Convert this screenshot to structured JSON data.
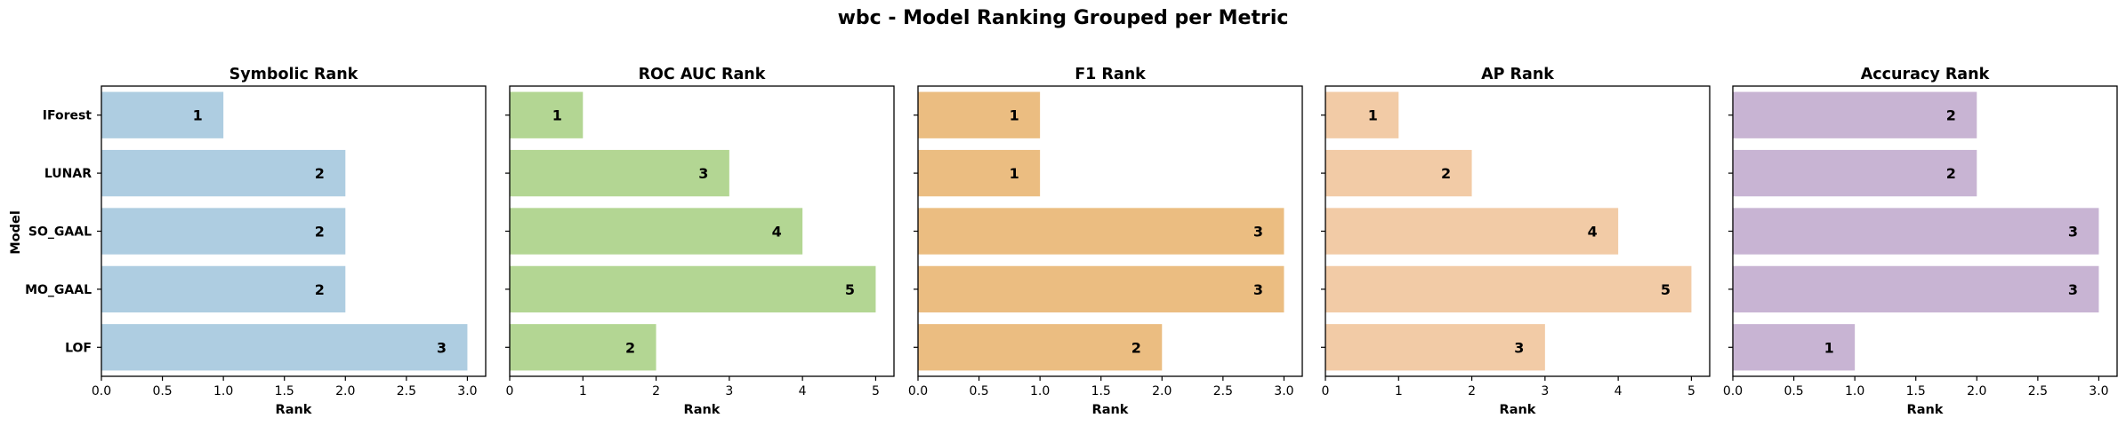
{
  "figure": {
    "title": "wbc - Model Ranking Grouped per Metric",
    "shared_ylabel": "Model"
  },
  "chart_data": [
    {
      "type": "bar",
      "orientation": "horizontal",
      "title": "Symbolic Rank",
      "xlabel": "Rank",
      "ylabel": "Model",
      "categories": [
        "IForest",
        "LUNAR",
        "SO_GAAL",
        "MO_GAAL",
        "LOF"
      ],
      "values": [
        1,
        2,
        2,
        2,
        3
      ],
      "xlim": [
        0,
        3.15
      ],
      "xticks": [
        0.0,
        0.5,
        1.0,
        1.5,
        2.0,
        2.5,
        3.0
      ],
      "xtick_labels": [
        "0.0",
        "0.5",
        "1.0",
        "1.5",
        "2.0",
        "2.5",
        "3.0"
      ],
      "color": "#aecde1",
      "show_category_labels": true,
      "data_labels": true,
      "grid": false
    },
    {
      "type": "bar",
      "orientation": "horizontal",
      "title": "ROC AUC Rank",
      "xlabel": "Rank",
      "ylabel": "",
      "categories": [
        "IForest",
        "LUNAR",
        "SO_GAAL",
        "MO_GAAL",
        "LOF"
      ],
      "values": [
        1,
        3,
        4,
        5,
        2
      ],
      "xlim": [
        0,
        5.25
      ],
      "xticks": [
        0,
        1,
        2,
        3,
        4,
        5
      ],
      "xtick_labels": [
        "0",
        "1",
        "2",
        "3",
        "4",
        "5"
      ],
      "color": "#b3d693",
      "show_category_labels": false,
      "data_labels": true,
      "grid": false
    },
    {
      "type": "bar",
      "orientation": "horizontal",
      "title": "F1 Rank",
      "xlabel": "Rank",
      "ylabel": "",
      "categories": [
        "IForest",
        "LUNAR",
        "SO_GAAL",
        "MO_GAAL",
        "LOF"
      ],
      "values": [
        1,
        1,
        3,
        3,
        2
      ],
      "xlim": [
        0,
        3.15
      ],
      "xticks": [
        0.0,
        0.5,
        1.0,
        1.5,
        2.0,
        2.5,
        3.0
      ],
      "xtick_labels": [
        "0.0",
        "0.5",
        "1.0",
        "1.5",
        "2.0",
        "2.5",
        "3.0"
      ],
      "color": "#ebbd81",
      "show_category_labels": false,
      "data_labels": true,
      "grid": false
    },
    {
      "type": "bar",
      "orientation": "horizontal",
      "title": "AP Rank",
      "xlabel": "Rank",
      "ylabel": "",
      "categories": [
        "IForest",
        "LUNAR",
        "SO_GAAL",
        "MO_GAAL",
        "LOF"
      ],
      "values": [
        1,
        2,
        4,
        5,
        3
      ],
      "xlim": [
        0,
        5.25
      ],
      "xticks": [
        0,
        1,
        2,
        3,
        4,
        5
      ],
      "xtick_labels": [
        "0",
        "1",
        "2",
        "3",
        "4",
        "5"
      ],
      "color": "#f2cba6",
      "show_category_labels": false,
      "data_labels": true,
      "grid": false
    },
    {
      "type": "bar",
      "orientation": "horizontal",
      "title": "Accuracy Rank",
      "xlabel": "Rank",
      "ylabel": "",
      "categories": [
        "IForest",
        "LUNAR",
        "SO_GAAL",
        "MO_GAAL",
        "LOF"
      ],
      "values": [
        2,
        2,
        3,
        3,
        1
      ],
      "xlim": [
        0,
        3.15
      ],
      "xticks": [
        0.0,
        0.5,
        1.0,
        1.5,
        2.0,
        2.5,
        3.0
      ],
      "xtick_labels": [
        "0.0",
        "0.5",
        "1.0",
        "1.5",
        "2.0",
        "2.5",
        "3.0"
      ],
      "color": "#c8b4d3",
      "show_category_labels": false,
      "data_labels": true,
      "grid": false
    }
  ]
}
